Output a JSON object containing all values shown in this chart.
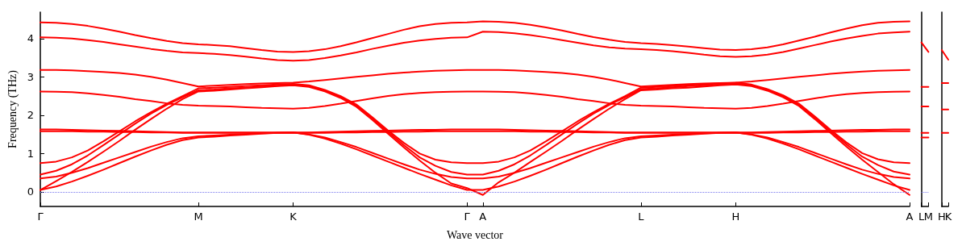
{
  "chart_data": [
    {
      "type": "line",
      "xlabel": "Wave vector",
      "ylabel": "Frequency (THz)",
      "marker": "none",
      "line_style": "solid",
      "categories": [
        "Γ",
        null,
        null,
        null,
        null,
        null,
        null,
        null,
        null,
        null,
        "M",
        null,
        null,
        null,
        null,
        null,
        "K",
        null,
        null,
        null,
        null,
        null,
        null,
        null,
        null,
        null,
        null,
        "Γ",
        "A",
        null,
        null,
        null,
        null,
        null,
        null,
        null,
        null,
        null,
        "L",
        null,
        null,
        null,
        null,
        null,
        "H",
        null,
        null,
        null,
        null,
        null,
        null,
        null,
        null,
        null,
        null,
        "A"
      ],
      "ylim": [
        -0.38,
        4.69
      ],
      "yticks": [
        0,
        1,
        2,
        3,
        4
      ],
      "ref_lines": [
        {
          "axis": "y",
          "value": 0,
          "color": "#7777ee",
          "line_style": "dotted"
        }
      ],
      "series": [
        {
          "color": "#ff0000",
          "values": [
            4.42,
            4.41,
            4.38,
            4.33,
            4.26,
            4.18,
            4.09,
            4.01,
            3.94,
            3.88,
            3.85,
            3.83,
            3.8,
            3.75,
            3.7,
            3.66,
            3.65,
            3.67,
            3.72,
            3.8,
            3.9,
            4.01,
            4.12,
            4.23,
            4.32,
            4.38,
            4.41,
            4.42,
            4.45,
            4.44,
            4.41,
            4.36,
            4.29,
            4.21,
            4.12,
            4.04,
            3.97,
            3.91,
            3.88,
            3.86,
            3.83,
            3.79,
            3.75,
            3.71,
            3.7,
            3.72,
            3.77,
            3.85,
            3.95,
            4.05,
            4.16,
            4.26,
            4.35,
            4.41,
            4.44,
            4.45
          ]
        },
        {
          "color": "#ff0000",
          "values": [
            4.03,
            4.02,
            4.0,
            3.96,
            3.91,
            3.85,
            3.79,
            3.73,
            3.68,
            3.64,
            3.62,
            3.6,
            3.57,
            3.53,
            3.48,
            3.44,
            3.42,
            3.44,
            3.49,
            3.56,
            3.64,
            3.73,
            3.81,
            3.89,
            3.95,
            3.99,
            4.02,
            4.03,
            4.18,
            4.17,
            4.14,
            4.09,
            4.03,
            3.96,
            3.89,
            3.82,
            3.77,
            3.74,
            3.72,
            3.7,
            3.67,
            3.63,
            3.58,
            3.54,
            3.52,
            3.54,
            3.58,
            3.65,
            3.74,
            3.83,
            3.92,
            4.0,
            4.07,
            4.13,
            4.16,
            4.18
          ]
        },
        {
          "color": "#ff0000",
          "values": [
            3.18,
            3.18,
            3.17,
            3.15,
            3.13,
            3.1,
            3.06,
            3.0,
            2.93,
            2.84,
            2.75,
            2.77,
            2.79,
            2.81,
            2.83,
            2.84,
            2.85,
            2.88,
            2.92,
            2.96,
            3.0,
            3.04,
            3.08,
            3.11,
            3.14,
            3.16,
            3.17,
            3.18,
            3.18,
            3.18,
            3.17,
            3.15,
            3.13,
            3.1,
            3.06,
            3.0,
            2.93,
            2.84,
            2.75,
            2.77,
            2.79,
            2.81,
            2.83,
            2.84,
            2.85,
            2.88,
            2.92,
            2.96,
            3.0,
            3.04,
            3.08,
            3.11,
            3.14,
            3.16,
            3.17,
            3.18
          ]
        },
        {
          "color": "#ff0000",
          "values": [
            2.62,
            2.61,
            2.6,
            2.57,
            2.53,
            2.48,
            2.42,
            2.37,
            2.31,
            2.27,
            2.25,
            2.24,
            2.23,
            2.21,
            2.19,
            2.18,
            2.17,
            2.19,
            2.24,
            2.3,
            2.37,
            2.44,
            2.5,
            2.55,
            2.58,
            2.6,
            2.61,
            2.62,
            2.62,
            2.61,
            2.6,
            2.57,
            2.53,
            2.48,
            2.42,
            2.37,
            2.31,
            2.27,
            2.25,
            2.24,
            2.23,
            2.21,
            2.19,
            2.18,
            2.17,
            2.19,
            2.24,
            2.3,
            2.37,
            2.44,
            2.5,
            2.55,
            2.58,
            2.6,
            2.61,
            2.62
          ]
        },
        {
          "color": "#ff0000",
          "values": [
            1.63,
            1.63,
            1.62,
            1.61,
            1.6,
            1.59,
            1.58,
            1.57,
            1.56,
            1.55,
            1.55,
            1.55,
            1.55,
            1.55,
            1.55,
            1.55,
            1.55,
            1.55,
            1.56,
            1.57,
            1.58,
            1.59,
            1.6,
            1.61,
            1.62,
            1.62,
            1.63,
            1.63,
            1.63,
            1.63,
            1.62,
            1.61,
            1.6,
            1.59,
            1.58,
            1.57,
            1.56,
            1.55,
            1.55,
            1.55,
            1.55,
            1.55,
            1.55,
            1.55,
            1.55,
            1.55,
            1.56,
            1.57,
            1.58,
            1.59,
            1.6,
            1.61,
            1.62,
            1.62,
            1.63,
            1.63
          ]
        },
        {
          "color": "#ff0000",
          "values": [
            1.58,
            1.58,
            1.58,
            1.57,
            1.57,
            1.56,
            1.56,
            1.55,
            1.55,
            1.54,
            1.54,
            1.54,
            1.54,
            1.54,
            1.54,
            1.54,
            1.54,
            1.54,
            1.54,
            1.55,
            1.55,
            1.56,
            1.56,
            1.57,
            1.57,
            1.58,
            1.58,
            1.58,
            1.58,
            1.58,
            1.58,
            1.57,
            1.57,
            1.56,
            1.56,
            1.55,
            1.55,
            1.54,
            1.54,
            1.54,
            1.54,
            1.54,
            1.54,
            1.54,
            1.54,
            1.54,
            1.54,
            1.55,
            1.55,
            1.56,
            1.56,
            1.57,
            1.57,
            1.58,
            1.58,
            1.58
          ]
        },
        {
          "color": "#ff0000",
          "values": [
            0.75,
            0.79,
            0.9,
            1.08,
            1.32,
            1.58,
            1.84,
            2.08,
            2.3,
            2.5,
            2.7,
            2.72,
            2.74,
            2.76,
            2.78,
            2.8,
            2.82,
            2.78,
            2.66,
            2.5,
            2.28,
            1.95,
            1.6,
            1.28,
            1.0,
            0.84,
            0.77,
            0.75,
            0.75,
            0.79,
            0.9,
            1.08,
            1.32,
            1.58,
            1.84,
            2.08,
            2.3,
            2.5,
            2.72,
            2.74,
            2.76,
            2.79,
            2.81,
            2.83,
            2.85,
            2.8,
            2.68,
            2.52,
            2.3,
            1.97,
            1.62,
            1.29,
            1.01,
            0.85,
            0.77,
            0.75
          ]
        },
        {
          "color": "#ff0000",
          "values": [
            0.45,
            0.55,
            0.72,
            0.95,
            1.22,
            1.5,
            1.78,
            2.04,
            2.27,
            2.47,
            2.65,
            2.67,
            2.7,
            2.72,
            2.75,
            2.77,
            2.8,
            2.76,
            2.64,
            2.48,
            2.25,
            1.92,
            1.56,
            1.22,
            0.9,
            0.68,
            0.52,
            0.45,
            0.45,
            0.55,
            0.72,
            0.95,
            1.22,
            1.5,
            1.78,
            2.04,
            2.27,
            2.47,
            2.68,
            2.7,
            2.73,
            2.76,
            2.78,
            2.81,
            2.83,
            2.78,
            2.66,
            2.5,
            2.27,
            1.94,
            1.58,
            1.24,
            0.92,
            0.7,
            0.53,
            0.45
          ]
        },
        {
          "color": "#ff0000",
          "values": [
            0.05,
            0.28,
            0.52,
            0.78,
            1.05,
            1.33,
            1.62,
            1.9,
            2.17,
            2.42,
            2.62,
            2.64,
            2.67,
            2.7,
            2.73,
            2.76,
            2.78,
            2.74,
            2.62,
            2.45,
            2.22,
            1.88,
            1.52,
            1.16,
            0.82,
            0.5,
            0.22,
            0.1,
            -0.08,
            0.25,
            0.5,
            0.78,
            1.05,
            1.33,
            1.62,
            1.9,
            2.17,
            2.42,
            2.65,
            2.67,
            2.7,
            2.72,
            2.75,
            2.78,
            2.8,
            2.76,
            2.64,
            2.47,
            2.24,
            1.9,
            1.54,
            1.18,
            0.84,
            0.52,
            0.2,
            -0.08
          ]
        },
        {
          "color": "#ff0000",
          "values": [
            0.35,
            0.4,
            0.5,
            0.62,
            0.76,
            0.9,
            1.04,
            1.18,
            1.3,
            1.4,
            1.45,
            1.47,
            1.49,
            1.51,
            1.53,
            1.54,
            1.55,
            1.5,
            1.42,
            1.3,
            1.17,
            1.02,
            0.87,
            0.72,
            0.58,
            0.47,
            0.39,
            0.35,
            0.35,
            0.4,
            0.5,
            0.62,
            0.76,
            0.9,
            1.04,
            1.18,
            1.3,
            1.4,
            1.45,
            1.47,
            1.49,
            1.51,
            1.53,
            1.54,
            1.55,
            1.5,
            1.42,
            1.3,
            1.17,
            1.02,
            0.87,
            0.72,
            0.58,
            0.47,
            0.39,
            0.35
          ]
        },
        {
          "color": "#ff0000",
          "values": [
            0.05,
            0.14,
            0.27,
            0.42,
            0.58,
            0.75,
            0.92,
            1.08,
            1.23,
            1.35,
            1.42,
            1.44,
            1.47,
            1.49,
            1.52,
            1.54,
            1.55,
            1.49,
            1.39,
            1.26,
            1.11,
            0.95,
            0.79,
            0.63,
            0.47,
            0.32,
            0.17,
            0.05,
            0.05,
            0.14,
            0.27,
            0.42,
            0.58,
            0.75,
            0.92,
            1.08,
            1.23,
            1.35,
            1.42,
            1.44,
            1.47,
            1.49,
            1.52,
            1.54,
            1.55,
            1.49,
            1.39,
            1.26,
            1.11,
            0.95,
            0.79,
            0.63,
            0.47,
            0.32,
            0.17,
            0.05
          ]
        }
      ]
    },
    {
      "type": "line",
      "tick_labels": "x",
      "marker": "none",
      "line_style": "solid",
      "categories": [
        "L",
        "M"
      ],
      "ylim": [
        -0.38,
        4.69
      ],
      "ref_lines": [
        {
          "axis": "y",
          "value": 0,
          "color": "#7777ee",
          "line_style": "dotted"
        }
      ],
      "series": [
        {
          "color": "#ff0000",
          "values": [
            3.9,
            3.65
          ]
        },
        {
          "color": "#ff0000",
          "values": [
            2.74,
            2.74
          ]
        },
        {
          "color": "#ff0000",
          "values": [
            2.23,
            2.23
          ]
        },
        {
          "color": "#ff0000",
          "values": [
            1.54,
            1.54
          ]
        },
        {
          "color": "#ff0000",
          "values": [
            1.42,
            1.42
          ]
        }
      ]
    },
    {
      "type": "line",
      "tick_labels": "x",
      "marker": "none",
      "line_style": "solid",
      "categories": [
        "H",
        "K"
      ],
      "ylim": [
        -0.38,
        4.69
      ],
      "series": [
        {
          "color": "#ff0000",
          "values": [
            3.7,
            3.45
          ]
        },
        {
          "color": "#ff0000",
          "values": [
            2.84,
            2.84
          ]
        },
        {
          "color": "#ff0000",
          "values": [
            2.15,
            2.15
          ]
        },
        {
          "color": "#ff0000",
          "values": [
            1.54,
            1.54
          ]
        }
      ]
    }
  ]
}
